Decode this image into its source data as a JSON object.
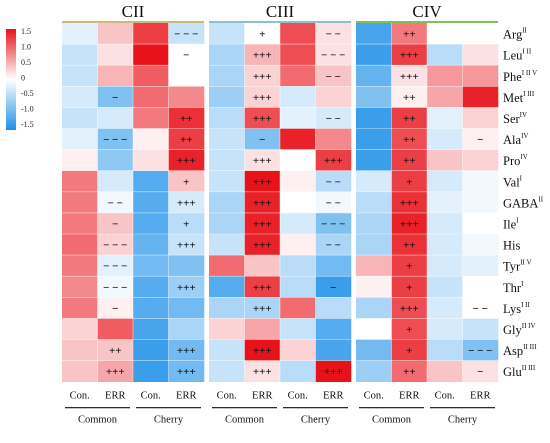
{
  "chart_data": {
    "type": "heatmap",
    "colorbar": {
      "ticks": [
        "1.5",
        "1.0",
        "0.5",
        "0",
        "-0.5",
        "-1.0",
        "-1.5"
      ],
      "colors": {
        "high": "#e8121a",
        "mid": "#ffffff",
        "low": "#1e90e8"
      }
    },
    "panels": [
      {
        "name": "CII",
        "color": "#cbb97a"
      },
      {
        "name": "CIII",
        "color": "#86c6c9"
      },
      {
        "name": "CIV",
        "color": "#7fc05a"
      }
    ],
    "column_labels": [
      "Con.",
      "ERR",
      "Con.",
      "ERR"
    ],
    "group_labels": [
      "Common",
      "Cherry"
    ],
    "rows": [
      {
        "name": "Arg",
        "sup": "II"
      },
      {
        "name": "Leu",
        "sup": "I II"
      },
      {
        "name": "Phe",
        "sup": "I II V"
      },
      {
        "name": "Met",
        "sup": "I III"
      },
      {
        "name": "Ser",
        "sup": "IV"
      },
      {
        "name": "Ala",
        "sup": "IV"
      },
      {
        "name": "Pro",
        "sup": "IV"
      },
      {
        "name": "Val",
        "sup": "I"
      },
      {
        "name": "GABA",
        "sup": "II"
      },
      {
        "name": "Ile",
        "sup": "I"
      },
      {
        "name": "His",
        "sup": ""
      },
      {
        "name": "Tyr",
        "sup": "II V"
      },
      {
        "name": "Thr",
        "sup": "I"
      },
      {
        "name": "Lys",
        "sup": "I II"
      },
      {
        "name": "Gly",
        "sup": "II IV"
      },
      {
        "name": "Asp",
        "sup": "II III"
      },
      {
        "name": "Glu",
        "sup": "II III"
      }
    ],
    "values": [
      [
        [
          -0.2,
          0.4,
          1.3,
          -0.4
        ],
        [
          -0.4,
          0.0,
          1.2,
          0.2
        ],
        [
          -1.3,
          0.9,
          0.0,
          0.0
        ]
      ],
      [
        [
          -0.4,
          0.2,
          1.6,
          0.0
        ],
        [
          -0.6,
          0.5,
          1.2,
          0.2
        ],
        [
          -1.4,
          1.3,
          -0.5,
          0.2
        ]
      ],
      [
        [
          -0.4,
          0.5,
          1.1,
          0.0
        ],
        [
          -0.6,
          0.3,
          1.0,
          0.4
        ],
        [
          -1.1,
          0.2,
          0.7,
          0.7
        ]
      ],
      [
        [
          -0.3,
          -0.9,
          1.0,
          0.8
        ],
        [
          -0.7,
          0.3,
          -0.3,
          0.3
        ],
        [
          -0.9,
          0.1,
          0.6,
          1.5
        ]
      ],
      [
        [
          -0.4,
          -0.3,
          0.9,
          1.4
        ],
        [
          -0.5,
          1.2,
          -0.2,
          -0.3
        ],
        [
          -1.4,
          1.3,
          -0.2,
          0.3
        ]
      ],
      [
        [
          -0.2,
          -0.9,
          0.1,
          1.3
        ],
        [
          -0.4,
          -0.9,
          1.5,
          0.8
        ],
        [
          -1.4,
          1.2,
          -0.3,
          0.1
        ]
      ],
      [
        [
          0.1,
          -0.8,
          0.2,
          1.5
        ],
        [
          -0.4,
          0.2,
          0.0,
          1.3
        ],
        [
          -1.4,
          1.3,
          0.4,
          0.3
        ]
      ],
      [
        [
          0.9,
          -0.3,
          -1.2,
          0.4
        ],
        [
          -0.4,
          1.6,
          0.1,
          -0.5
        ],
        [
          -0.3,
          1.3,
          -0.3,
          -0.1
        ]
      ],
      [
        [
          0.9,
          -0.1,
          -1.2,
          -0.3
        ],
        [
          -0.6,
          1.5,
          0.0,
          -0.1
        ],
        [
          -0.5,
          1.4,
          -0.2,
          -0.1
        ]
      ],
      [
        [
          0.9,
          0.4,
          -1.2,
          -0.5
        ],
        [
          -0.6,
          1.5,
          -0.3,
          -0.9
        ],
        [
          -0.6,
          1.5,
          -0.3,
          0.0
        ]
      ],
      [
        [
          1.0,
          0.3,
          -1.1,
          -0.4
        ],
        [
          -0.4,
          1.5,
          0.1,
          -0.6
        ],
        [
          -0.6,
          1.4,
          -0.3,
          -0.1
        ]
      ],
      [
        [
          0.9,
          -0.2,
          -1.0,
          -0.9
        ],
        [
          1.0,
          0.4,
          -0.5,
          -1.0
        ],
        [
          0.5,
          1.3,
          -0.3,
          -0.2
        ]
      ],
      [
        [
          0.8,
          -0.1,
          -1.2,
          -0.7
        ],
        [
          -1.2,
          1.3,
          -0.5,
          -1.4
        ],
        [
          0.1,
          1.3,
          -0.4,
          0.0
        ]
      ],
      [
        [
          0.9,
          0.1,
          -1.2,
          -1.0
        ],
        [
          -0.6,
          -0.6,
          1.0,
          -0.5
        ],
        [
          -0.6,
          1.2,
          -0.3,
          0.0
        ]
      ],
      [
        [
          0.3,
          1.1,
          -1.3,
          -0.6
        ],
        [
          0.3,
          0.6,
          -0.4,
          -1.2
        ],
        [
          0.0,
          1.2,
          -0.3,
          -0.4
        ]
      ],
      [
        [
          0.4,
          0.4,
          -1.4,
          -1.0
        ],
        [
          -0.4,
          1.6,
          0.3,
          -1.3
        ],
        [
          -1.0,
          1.3,
          -0.5,
          -0.9
        ]
      ],
      [
        [
          0.4,
          0.6,
          -1.4,
          -1.0
        ],
        [
          -0.4,
          0.2,
          -0.5,
          1.7
        ],
        [
          -0.7,
          1.0,
          0.4,
          0.2
        ]
      ]
    ],
    "annotations": [
      [
        [
          "",
          "",
          "",
          "− − −"
        ],
        [
          "",
          "+",
          "",
          "− −"
        ],
        [
          "",
          "++",
          "",
          ""
        ]
      ],
      [
        [
          "",
          "",
          "",
          "−"
        ],
        [
          "",
          "+++",
          "",
          "− − −"
        ],
        [
          "",
          "+++",
          "",
          ""
        ]
      ],
      [
        [
          "",
          "",
          "",
          ""
        ],
        [
          "",
          "+++",
          "",
          "− −"
        ],
        [
          "",
          "+++",
          "",
          ""
        ]
      ],
      [
        [
          "",
          "−",
          "",
          ""
        ],
        [
          "",
          "+++",
          "",
          ""
        ],
        [
          "",
          "++",
          "",
          ""
        ]
      ],
      [
        [
          "",
          "",
          "",
          "++"
        ],
        [
          "",
          "+++",
          "",
          "− −"
        ],
        [
          "",
          "++",
          "",
          ""
        ]
      ],
      [
        [
          "",
          "− − −",
          "",
          "++"
        ],
        [
          "",
          "−",
          "",
          ""
        ],
        [
          "",
          "++",
          "",
          "−"
        ]
      ],
      [
        [
          "",
          "",
          "",
          "+++"
        ],
        [
          "",
          "+++",
          "",
          "+++"
        ],
        [
          "",
          "++",
          "",
          ""
        ]
      ],
      [
        [
          "",
          "",
          "",
          "+"
        ],
        [
          "",
          "+++",
          "",
          "− −"
        ],
        [
          "",
          "+",
          "",
          ""
        ]
      ],
      [
        [
          "",
          "− −",
          "",
          "+++"
        ],
        [
          "",
          "+++",
          "",
          "− −"
        ],
        [
          "",
          "+++",
          "",
          ""
        ]
      ],
      [
        [
          "",
          "−",
          "",
          "+"
        ],
        [
          "",
          "+++",
          "",
          "− − −"
        ],
        [
          "",
          "+++",
          "",
          ""
        ]
      ],
      [
        [
          "",
          "− − −",
          "",
          "+++"
        ],
        [
          "",
          "+++",
          "",
          "− −"
        ],
        [
          "",
          "++",
          "",
          ""
        ]
      ],
      [
        [
          "",
          "− − −",
          "",
          ""
        ],
        [
          "",
          "",
          "",
          ""
        ],
        [
          "",
          "+",
          "",
          ""
        ]
      ],
      [
        [
          "",
          "− − −",
          "",
          "+++"
        ],
        [
          "",
          "+++",
          "",
          "−"
        ],
        [
          "",
          "+",
          "",
          ""
        ]
      ],
      [
        [
          "",
          "−",
          "",
          ""
        ],
        [
          "",
          "+++",
          "",
          ""
        ],
        [
          "",
          "+++",
          "",
          "− −"
        ]
      ],
      [
        [
          "",
          "",
          "",
          ""
        ],
        [
          "",
          "",
          "",
          ""
        ],
        [
          "",
          "+",
          "",
          ""
        ]
      ],
      [
        [
          "",
          "++",
          "",
          "+++"
        ],
        [
          "",
          "+++",
          "",
          ""
        ],
        [
          "",
          "+",
          "",
          "− − −"
        ]
      ],
      [
        [
          "",
          "+++",
          "",
          "+++"
        ],
        [
          "",
          "+++",
          "",
          "+++"
        ],
        [
          "",
          "++",
          "",
          "−"
        ]
      ]
    ]
  }
}
